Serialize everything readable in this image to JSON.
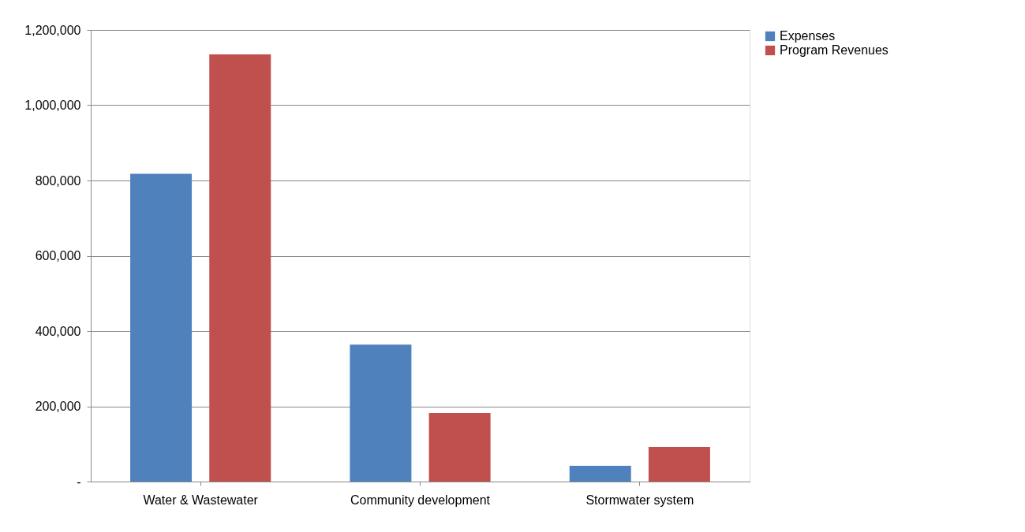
{
  "chart_data": {
    "type": "bar",
    "categories": [
      "Water & Wastewater",
      "Community development",
      "Stormwater system"
    ],
    "series": [
      {
        "name": "Expenses",
        "color": "#4f81bd",
        "values": [
          818000,
          364000,
          42000
        ]
      },
      {
        "name": "Program Revenues",
        "color": "#c0504d",
        "values": [
          1135000,
          182000,
          92000
        ]
      }
    ],
    "ylim": [
      0,
      1200000
    ],
    "yticks": [
      {
        "value": 0,
        "label": "-"
      },
      {
        "value": 200000,
        "label": "200,000"
      },
      {
        "value": 400000,
        "label": "400,000"
      },
      {
        "value": 600000,
        "label": "600,000"
      },
      {
        "value": 800000,
        "label": "800,000"
      },
      {
        "value": 1000000,
        "label": "1,000,000"
      },
      {
        "value": 1200000,
        "label": "1,200,000"
      }
    ],
    "grid": "y",
    "legend": "right"
  }
}
